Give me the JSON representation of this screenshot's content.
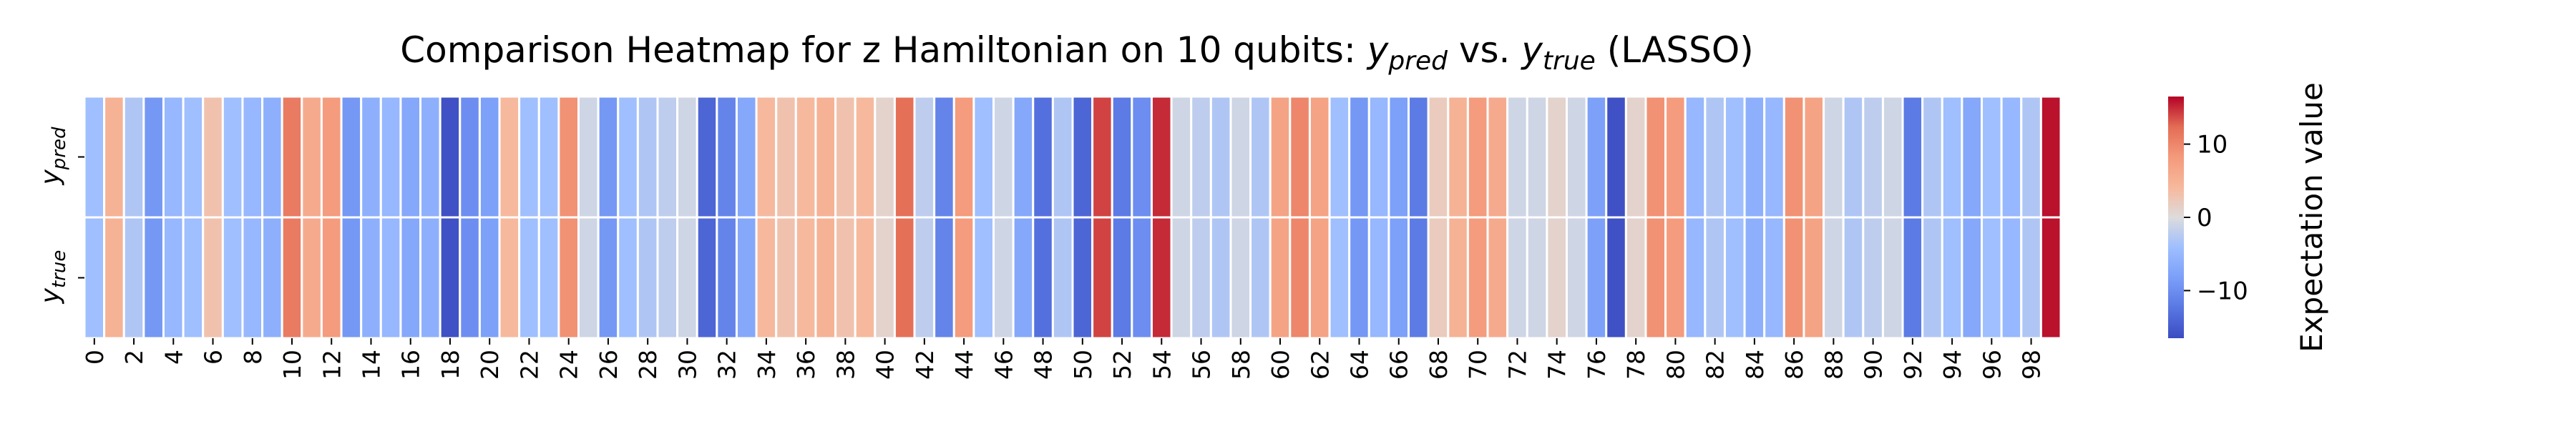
{
  "chart_data": {
    "type": "heatmap",
    "title_parts": {
      "prefix": "Comparison Heatmap for z Hamiltonian on 10 qubits: ",
      "pred_base": "y",
      "pred_sub": "pred",
      "vs": " vs. ",
      "true_base": "y",
      "true_sub": "true",
      "suffix": " (LASSO)"
    },
    "rows": [
      {
        "base": "y",
        "sub": "pred"
      },
      {
        "base": "y",
        "sub": "true"
      }
    ],
    "x": [
      0,
      1,
      2,
      3,
      4,
      5,
      6,
      7,
      8,
      9,
      10,
      11,
      12,
      13,
      14,
      15,
      16,
      17,
      18,
      19,
      20,
      21,
      22,
      23,
      24,
      25,
      26,
      27,
      28,
      29,
      30,
      31,
      32,
      33,
      34,
      35,
      36,
      37,
      38,
      39,
      40,
      41,
      42,
      43,
      44,
      45,
      46,
      47,
      48,
      49,
      50,
      51,
      52,
      53,
      54,
      55,
      56,
      57,
      58,
      59,
      60,
      61,
      62,
      63,
      64,
      65,
      66,
      67,
      68,
      69,
      70,
      71,
      72,
      73,
      74,
      75,
      76,
      77,
      78,
      79,
      80,
      81,
      82,
      83,
      84,
      85,
      86,
      87,
      88,
      89,
      90,
      91,
      92,
      93,
      94,
      95,
      96,
      97,
      98,
      99
    ],
    "xticks": [
      "0",
      "2",
      "4",
      "6",
      "8",
      "10",
      "12",
      "14",
      "16",
      "18",
      "20",
      "22",
      "24",
      "26",
      "28",
      "30",
      "32",
      "34",
      "36",
      "38",
      "40",
      "42",
      "44",
      "46",
      "48",
      "50",
      "52",
      "54",
      "56",
      "58",
      "60",
      "62",
      "64",
      "66",
      "68",
      "70",
      "72",
      "74",
      "76",
      "78",
      "80",
      "82",
      "84",
      "86",
      "88",
      "90",
      "92",
      "94",
      "96",
      "98"
    ],
    "values_pred": [
      -4,
      5,
      -3,
      -9,
      -5,
      -4,
      3,
      -4,
      -5,
      -6,
      11,
      6,
      8,
      -9,
      -6,
      -5,
      -7,
      -6,
      -16,
      -10,
      -8,
      4,
      -4,
      -4,
      9,
      -1,
      -9,
      -4,
      -3,
      -2,
      -1,
      -14,
      -11,
      -7,
      4,
      3,
      4,
      5,
      3,
      4,
      1,
      12,
      -2,
      -11,
      8,
      -4,
      -1,
      -7,
      -13,
      -3,
      -14,
      14,
      -12,
      -10,
      15,
      -1,
      -2,
      -3,
      -1,
      -3,
      7,
      10,
      7,
      -4,
      -9,
      -5,
      -8,
      -12,
      2,
      5,
      8,
      6,
      -1,
      -1,
      1,
      -1,
      -8,
      -16,
      1,
      9,
      8,
      -5,
      -3,
      -4,
      -6,
      -5,
      9,
      7,
      -1,
      -3,
      -2,
      -1,
      -12,
      -3,
      -4,
      -7,
      -4,
      -5,
      -3,
      16
    ],
    "values_true": [
      -4,
      5,
      -3,
      -9,
      -5,
      -4,
      3,
      -4,
      -5,
      -6,
      11,
      6,
      8,
      -9,
      -6,
      -5,
      -7,
      -6,
      -16,
      -10,
      -8,
      4,
      -4,
      -4,
      9,
      -1,
      -9,
      -4,
      -3,
      -2,
      -1,
      -14,
      -11,
      -7,
      4,
      3,
      4,
      5,
      3,
      4,
      1,
      12,
      -2,
      -11,
      8,
      -4,
      -1,
      -7,
      -13,
      -3,
      -14,
      14,
      -12,
      -10,
      15,
      -1,
      -2,
      -3,
      -1,
      -3,
      7,
      10,
      7,
      -4,
      -9,
      -5,
      -8,
      -12,
      2,
      5,
      8,
      6,
      -1,
      -1,
      1,
      -1,
      -8,
      -16,
      1,
      9,
      8,
      -5,
      -3,
      -4,
      -6,
      -5,
      9,
      7,
      -1,
      -3,
      -2,
      -1,
      -12,
      -3,
      -4,
      -7,
      -4,
      -5,
      -3,
      16
    ],
    "colorbar": {
      "label": "Expectation value",
      "range": [
        -16.5,
        16.5
      ],
      "ticks": [
        "10",
        "0",
        "−10"
      ],
      "cmap": "coolwarm"
    }
  }
}
